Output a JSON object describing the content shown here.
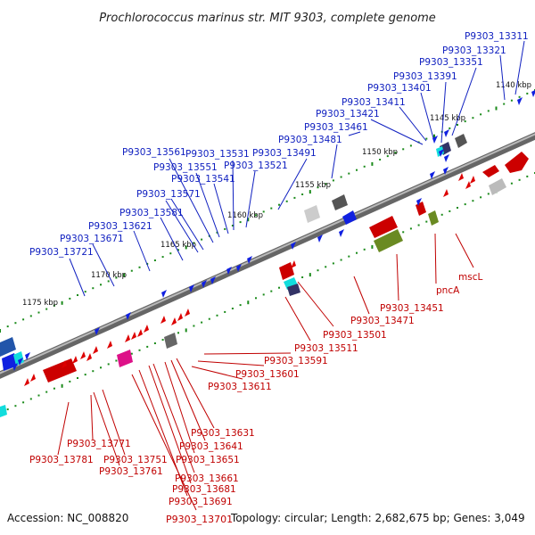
{
  "title": "Prochlorococcus marinus str. MIT 9303, complete genome",
  "footer": {
    "accession": "Accession: NC_008820",
    "topology": "Topology: circular; Length: 2,682,675 bp; Genes: 3,049",
    "bottom_label": "P9303_13701"
  },
  "scale_ticks": [
    "1140 kbp",
    "1145 kbp",
    "1150 kbp",
    "1155 kbp",
    "1160 kbp",
    "1165 kbp",
    "1170 kbp",
    "1175 kbp"
  ],
  "forward_genes": [
    "P9303_13311",
    "P9303_13321",
    "P9303_13351",
    "P9303_13391",
    "P9303_13401",
    "P9303_13411",
    "P9303_13421",
    "P9303_13461",
    "P9303_13481",
    "P9303_13491",
    "P9303_13521",
    "P9303_13531",
    "P9303_13541",
    "P9303_13551",
    "P9303_13561",
    "P9303_13571",
    "P9303_13581",
    "P9303_13621",
    "P9303_13671",
    "P9303_13721"
  ],
  "reverse_genes": [
    "mscL",
    "pncA",
    "P9303_13451",
    "P9303_13471",
    "P9303_13501",
    "P9303_13511",
    "P9303_13591",
    "P9303_13601",
    "P9303_13611",
    "P9303_13631",
    "P9303_13641",
    "P9303_13651",
    "P9303_13661",
    "P9303_13681",
    "P9303_13691",
    "P9303_13751",
    "P9303_13761",
    "P9303_13771",
    "P9303_13781"
  ],
  "colors": {
    "forward": "#1020c0",
    "reverse": "#c00000",
    "backbone": "#808080",
    "tick_green": "#1a8a1a"
  }
}
